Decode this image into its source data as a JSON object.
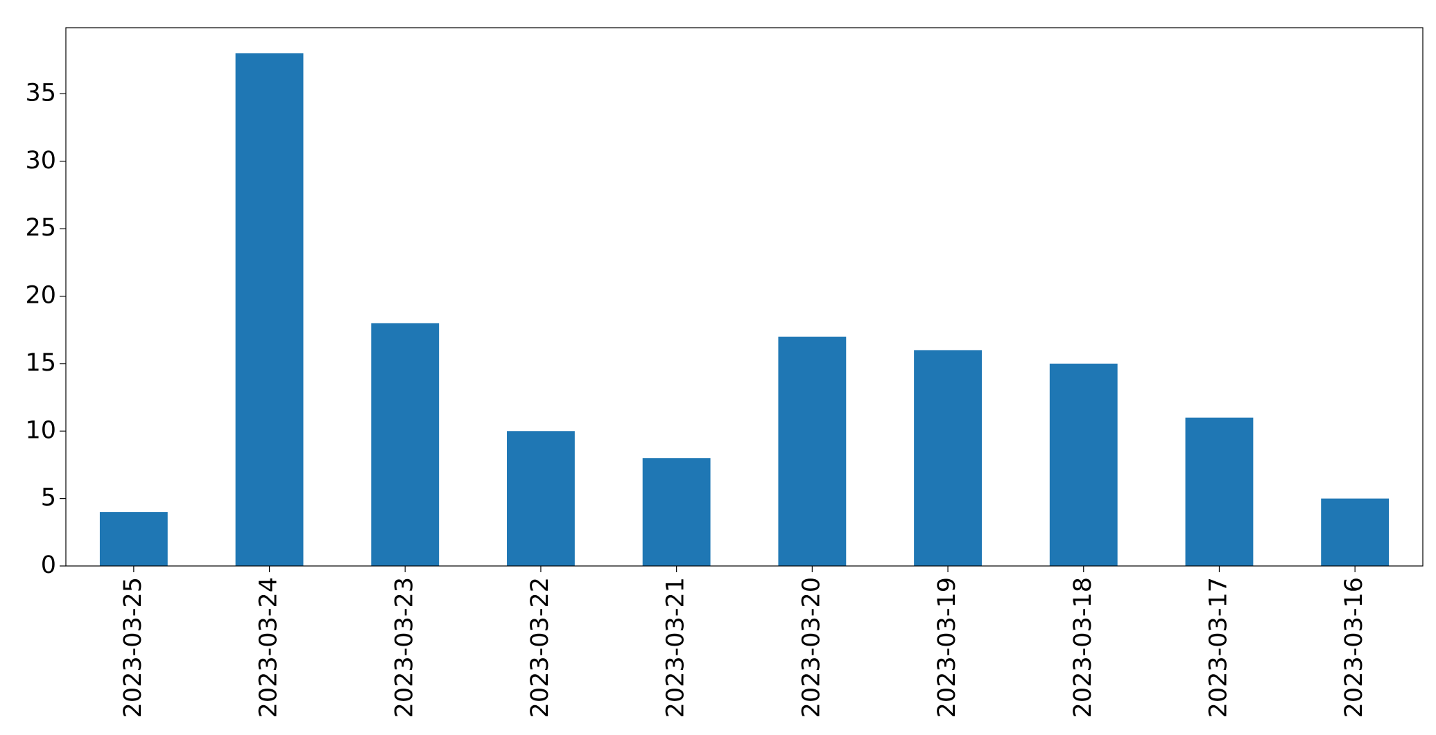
{
  "chart_data": {
    "type": "bar",
    "categories": [
      "2023-03-25",
      "2023-03-24",
      "2023-03-23",
      "2023-03-22",
      "2023-03-21",
      "2023-03-20",
      "2023-03-19",
      "2023-03-18",
      "2023-03-17",
      "2023-03-16"
    ],
    "values": [
      4,
      38,
      18,
      10,
      8,
      17,
      16,
      15,
      11,
      5
    ],
    "color": "#1f77b4",
    "ylim": [
      0,
      39.9
    ],
    "yticks": [
      0,
      5,
      10,
      15,
      20,
      25,
      30,
      35
    ],
    "grid": false
  }
}
